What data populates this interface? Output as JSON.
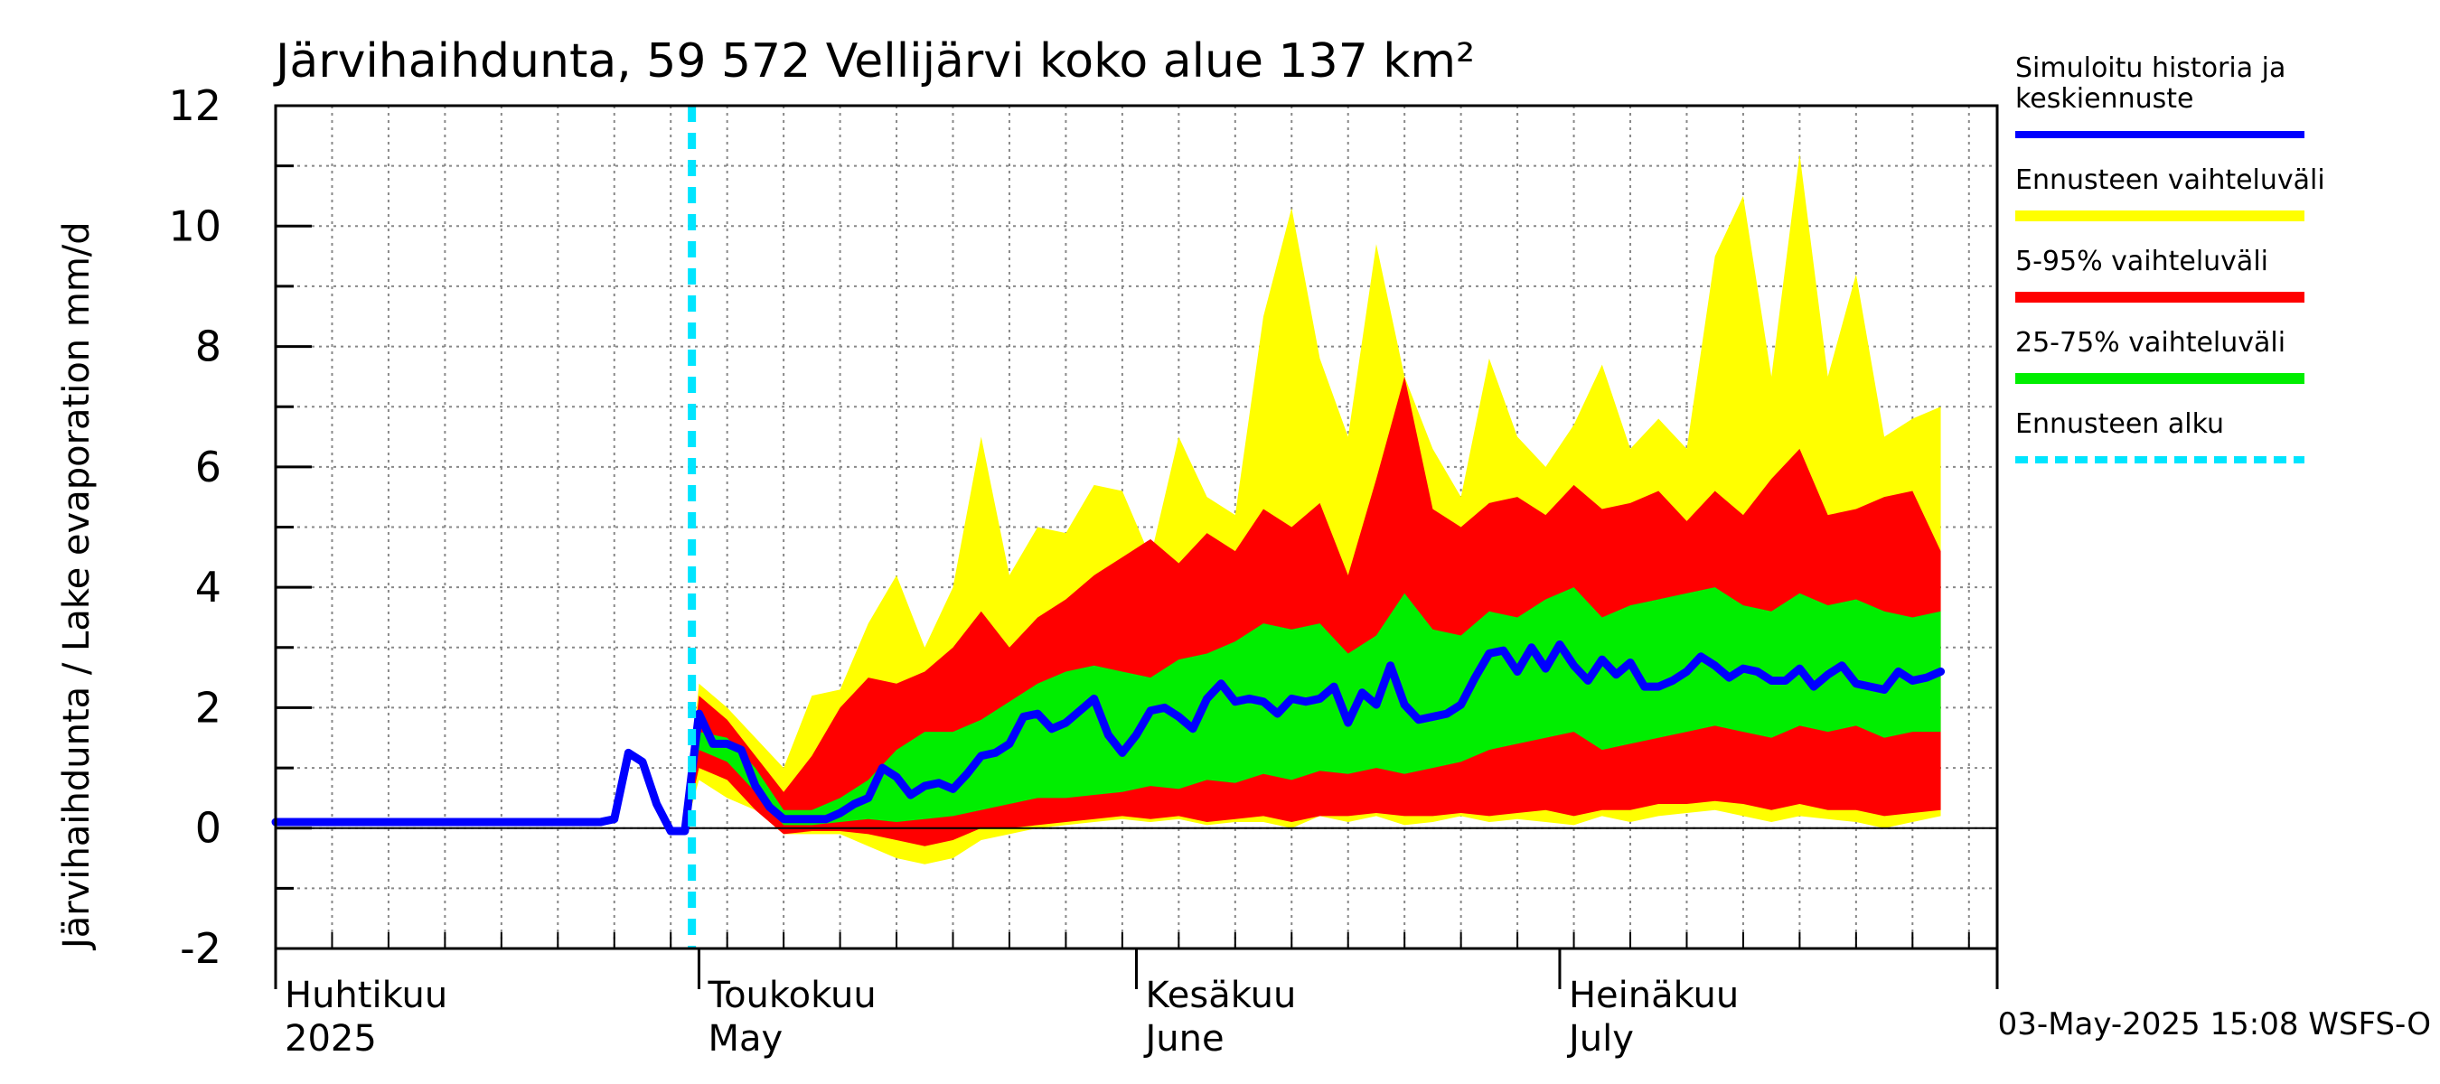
{
  "chart_data": {
    "type": "area",
    "title": "Järvihaihdunta, 59 572 Vellijärvi koko alue 137 km²",
    "ylabel": "Järvihaihdunta / Lake evaporation   mm/d",
    "ylim": [
      -2,
      12
    ],
    "yticks": [
      "-2",
      "0",
      "2",
      "4",
      "6",
      "8",
      "10",
      "12"
    ],
    "grid": true,
    "x_start": "2025-04-01",
    "x_end": "2025-07-31",
    "forecast_start": "2025-04-30",
    "month_labels": [
      {
        "date": "2025-04-01",
        "fi": "Huhtikuu",
        "en": "2025"
      },
      {
        "date": "2025-05-01",
        "fi": "Toukokuu",
        "en": "May"
      },
      {
        "date": "2025-06-01",
        "fi": "Kesäkuu",
        "en": "June"
      },
      {
        "date": "2025-07-01",
        "fi": "Heinäkuu",
        "en": "July"
      }
    ],
    "legend": [
      {
        "label": "Simuloitu historia ja\nkeskiennuste",
        "color": "#0000ff"
      },
      {
        "label": "Ennusteen vaihteluväli",
        "color": "#ffff00"
      },
      {
        "label": "5-95% vaihteluväli",
        "color": "#ff0000"
      },
      {
        "label": "25-75% vaihteluväli",
        "color": "#00ee00"
      },
      {
        "label": "Ennusteen alku",
        "color": "#00e5ff"
      }
    ],
    "timestamp": "03-May-2025 15:08 WSFS-O",
    "colors": {
      "mean": "#0000ff",
      "full_range": "#ffff00",
      "p5_95": "#ff0000",
      "p25_75": "#00ee00",
      "forecast_start": "#00e5ff"
    },
    "series": [
      {
        "name": "Simuloitu historia ja keskiennuste",
        "points": [
          [
            "2025-04-01",
            0.1
          ],
          [
            "2025-04-10",
            0.1
          ],
          [
            "2025-04-20",
            0.1
          ],
          [
            "2025-04-24",
            0.1
          ],
          [
            "2025-04-25",
            0.15
          ],
          [
            "2025-04-26",
            1.25
          ],
          [
            "2025-04-27",
            1.1
          ],
          [
            "2025-04-28",
            0.4
          ],
          [
            "2025-04-29",
            -0.05
          ],
          [
            "2025-04-30",
            -0.05
          ],
          [
            "2025-05-01",
            1.9
          ],
          [
            "2025-05-02",
            1.4
          ],
          [
            "2025-05-03",
            1.4
          ],
          [
            "2025-05-04",
            1.3
          ],
          [
            "2025-05-05",
            0.7
          ],
          [
            "2025-05-06",
            0.35
          ],
          [
            "2025-05-07",
            0.15
          ],
          [
            "2025-05-08",
            0.15
          ],
          [
            "2025-05-09",
            0.15
          ],
          [
            "2025-05-10",
            0.15
          ],
          [
            "2025-05-11",
            0.25
          ],
          [
            "2025-05-12",
            0.4
          ],
          [
            "2025-05-13",
            0.5
          ],
          [
            "2025-05-14",
            1.0
          ],
          [
            "2025-05-15",
            0.85
          ],
          [
            "2025-05-16",
            0.55
          ],
          [
            "2025-05-17",
            0.7
          ],
          [
            "2025-05-18",
            0.75
          ],
          [
            "2025-05-19",
            0.65
          ],
          [
            "2025-05-20",
            0.9
          ],
          [
            "2025-05-21",
            1.2
          ],
          [
            "2025-05-22",
            1.25
          ],
          [
            "2025-05-23",
            1.4
          ],
          [
            "2025-05-24",
            1.85
          ],
          [
            "2025-05-25",
            1.9
          ],
          [
            "2025-05-26",
            1.65
          ],
          [
            "2025-05-27",
            1.75
          ],
          [
            "2025-05-28",
            1.95
          ],
          [
            "2025-05-29",
            2.15
          ],
          [
            "2025-05-30",
            1.55
          ],
          [
            "2025-05-31",
            1.25
          ],
          [
            "2025-06-01",
            1.55
          ],
          [
            "2025-06-02",
            1.95
          ],
          [
            "2025-06-03",
            2.0
          ],
          [
            "2025-06-04",
            1.85
          ],
          [
            "2025-06-05",
            1.65
          ],
          [
            "2025-06-06",
            2.15
          ],
          [
            "2025-06-07",
            2.4
          ],
          [
            "2025-06-08",
            2.1
          ],
          [
            "2025-06-09",
            2.15
          ],
          [
            "2025-06-10",
            2.1
          ],
          [
            "2025-06-11",
            1.9
          ],
          [
            "2025-06-12",
            2.15
          ],
          [
            "2025-06-13",
            2.1
          ],
          [
            "2025-06-14",
            2.15
          ],
          [
            "2025-06-15",
            2.35
          ],
          [
            "2025-06-16",
            1.75
          ],
          [
            "2025-06-17",
            2.25
          ],
          [
            "2025-06-18",
            2.05
          ],
          [
            "2025-06-19",
            2.7
          ],
          [
            "2025-06-20",
            2.05
          ],
          [
            "2025-06-21",
            1.8
          ],
          [
            "2025-06-22",
            1.85
          ],
          [
            "2025-06-23",
            1.9
          ],
          [
            "2025-06-24",
            2.05
          ],
          [
            "2025-06-25",
            2.5
          ],
          [
            "2025-06-26",
            2.9
          ],
          [
            "2025-06-27",
            2.95
          ],
          [
            "2025-06-28",
            2.6
          ],
          [
            "2025-06-29",
            3.0
          ],
          [
            "2025-06-30",
            2.65
          ],
          [
            "2025-07-01",
            3.05
          ],
          [
            "2025-07-02",
            2.7
          ],
          [
            "2025-07-03",
            2.45
          ],
          [
            "2025-07-04",
            2.8
          ],
          [
            "2025-07-05",
            2.55
          ],
          [
            "2025-07-06",
            2.75
          ],
          [
            "2025-07-07",
            2.35
          ],
          [
            "2025-07-08",
            2.35
          ],
          [
            "2025-07-09",
            2.45
          ],
          [
            "2025-07-10",
            2.6
          ],
          [
            "2025-07-11",
            2.85
          ],
          [
            "2025-07-12",
            2.7
          ],
          [
            "2025-07-13",
            2.5
          ],
          [
            "2025-07-14",
            2.65
          ],
          [
            "2025-07-15",
            2.6
          ],
          [
            "2025-07-16",
            2.45
          ],
          [
            "2025-07-17",
            2.45
          ],
          [
            "2025-07-18",
            2.65
          ],
          [
            "2025-07-19",
            2.35
          ],
          [
            "2025-07-20",
            2.55
          ],
          [
            "2025-07-21",
            2.7
          ],
          [
            "2025-07-22",
            2.4
          ],
          [
            "2025-07-23",
            2.35
          ],
          [
            "2025-07-24",
            2.3
          ],
          [
            "2025-07-25",
            2.6
          ],
          [
            "2025-07-26",
            2.45
          ],
          [
            "2025-07-27",
            2.5
          ],
          [
            "2025-07-28",
            2.6
          ]
        ]
      },
      {
        "name": "Ennusteen vaihteluväli",
        "dates": [
          "2025-04-30",
          "2025-05-01",
          "2025-05-03",
          "2025-05-05",
          "2025-05-07",
          "2025-05-09",
          "2025-05-11",
          "2025-05-13",
          "2025-05-15",
          "2025-05-17",
          "2025-05-19",
          "2025-05-21",
          "2025-05-23",
          "2025-05-25",
          "2025-05-27",
          "2025-05-29",
          "2025-05-31",
          "2025-06-02",
          "2025-06-04",
          "2025-06-06",
          "2025-06-08",
          "2025-06-10",
          "2025-06-12",
          "2025-06-14",
          "2025-06-16",
          "2025-06-18",
          "2025-06-20",
          "2025-06-22",
          "2025-06-24",
          "2025-06-26",
          "2025-06-28",
          "2025-06-30",
          "2025-07-02",
          "2025-07-04",
          "2025-07-06",
          "2025-07-08",
          "2025-07-10",
          "2025-07-12",
          "2025-07-14",
          "2025-07-16",
          "2025-07-18",
          "2025-07-20",
          "2025-07-22",
          "2025-07-24",
          "2025-07-26",
          "2025-07-28"
        ],
        "low": [
          -0.05,
          0.8,
          0.5,
          0.3,
          -0.1,
          -0.1,
          -0.1,
          -0.3,
          -0.5,
          -0.6,
          -0.5,
          -0.2,
          -0.1,
          0.0,
          0.05,
          0.1,
          0.15,
          0.1,
          0.15,
          0.05,
          0.1,
          0.1,
          0.0,
          0.2,
          0.1,
          0.2,
          0.05,
          0.1,
          0.2,
          0.1,
          0.15,
          0.1,
          0.05,
          0.2,
          0.1,
          0.2,
          0.25,
          0.3,
          0.2,
          0.1,
          0.2,
          0.15,
          0.1,
          0.0,
          0.1,
          0.2
        ],
        "high": [
          -0.05,
          2.4,
          2.0,
          1.5,
          1.0,
          2.2,
          2.3,
          3.4,
          4.2,
          3.0,
          4.0,
          6.5,
          4.2,
          5.0,
          4.9,
          5.7,
          5.6,
          4.5,
          6.5,
          5.5,
          5.2,
          8.5,
          10.3,
          7.8,
          6.5,
          9.7,
          7.5,
          6.3,
          5.5,
          7.8,
          6.5,
          6.0,
          6.7,
          7.7,
          6.3,
          6.8,
          6.3,
          9.5,
          10.5,
          7.5,
          11.2,
          7.5,
          9.2,
          6.5,
          6.8,
          7.0
        ]
      },
      {
        "name": "5-95% vaihteluväli",
        "dates": [
          "2025-04-30",
          "2025-05-01",
          "2025-05-03",
          "2025-05-05",
          "2025-05-07",
          "2025-05-09",
          "2025-05-11",
          "2025-05-13",
          "2025-05-15",
          "2025-05-17",
          "2025-05-19",
          "2025-05-21",
          "2025-05-23",
          "2025-05-25",
          "2025-05-27",
          "2025-05-29",
          "2025-05-31",
          "2025-06-02",
          "2025-06-04",
          "2025-06-06",
          "2025-06-08",
          "2025-06-10",
          "2025-06-12",
          "2025-06-14",
          "2025-06-16",
          "2025-06-18",
          "2025-06-20",
          "2025-06-22",
          "2025-06-24",
          "2025-06-26",
          "2025-06-28",
          "2025-06-30",
          "2025-07-02",
          "2025-07-04",
          "2025-07-06",
          "2025-07-08",
          "2025-07-10",
          "2025-07-12",
          "2025-07-14",
          "2025-07-16",
          "2025-07-18",
          "2025-07-20",
          "2025-07-22",
          "2025-07-24",
          "2025-07-26",
          "2025-07-28"
        ],
        "low": [
          -0.05,
          1.0,
          0.8,
          0.3,
          -0.1,
          -0.05,
          -0.05,
          -0.1,
          -0.2,
          -0.3,
          -0.2,
          0.0,
          0.0,
          0.05,
          0.1,
          0.15,
          0.2,
          0.15,
          0.2,
          0.1,
          0.15,
          0.2,
          0.1,
          0.2,
          0.2,
          0.25,
          0.2,
          0.2,
          0.25,
          0.2,
          0.25,
          0.3,
          0.2,
          0.3,
          0.3,
          0.4,
          0.4,
          0.45,
          0.4,
          0.3,
          0.4,
          0.3,
          0.3,
          0.2,
          0.25,
          0.3
        ],
        "high": [
          -0.05,
          2.2,
          1.8,
          1.2,
          0.6,
          1.2,
          2.0,
          2.5,
          2.4,
          2.6,
          3.0,
          3.6,
          3.0,
          3.5,
          3.8,
          4.2,
          4.5,
          4.8,
          4.4,
          4.9,
          4.6,
          5.3,
          5.0,
          5.4,
          4.2,
          5.8,
          7.5,
          5.3,
          5.0,
          5.4,
          5.5,
          5.2,
          5.7,
          5.3,
          5.4,
          5.6,
          5.1,
          5.6,
          5.2,
          5.8,
          6.3,
          5.2,
          5.3,
          5.5,
          5.6,
          4.6
        ]
      },
      {
        "name": "25-75% vaihteluväli",
        "dates": [
          "2025-04-30",
          "2025-05-01",
          "2025-05-03",
          "2025-05-05",
          "2025-05-07",
          "2025-05-09",
          "2025-05-11",
          "2025-05-13",
          "2025-05-15",
          "2025-05-17",
          "2025-05-19",
          "2025-05-21",
          "2025-05-23",
          "2025-05-25",
          "2025-05-27",
          "2025-05-29",
          "2025-05-31",
          "2025-06-02",
          "2025-06-04",
          "2025-06-06",
          "2025-06-08",
          "2025-06-10",
          "2025-06-12",
          "2025-06-14",
          "2025-06-16",
          "2025-06-18",
          "2025-06-20",
          "2025-06-22",
          "2025-06-24",
          "2025-06-26",
          "2025-06-28",
          "2025-06-30",
          "2025-07-02",
          "2025-07-04",
          "2025-07-06",
          "2025-07-08",
          "2025-07-10",
          "2025-07-12",
          "2025-07-14",
          "2025-07-16",
          "2025-07-18",
          "2025-07-20",
          "2025-07-22",
          "2025-07-24",
          "2025-07-26",
          "2025-07-28"
        ],
        "low": [
          -0.05,
          1.3,
          1.1,
          0.6,
          0.05,
          0.05,
          0.1,
          0.15,
          0.1,
          0.15,
          0.2,
          0.3,
          0.4,
          0.5,
          0.5,
          0.55,
          0.6,
          0.7,
          0.65,
          0.8,
          0.75,
          0.9,
          0.8,
          0.95,
          0.9,
          1.0,
          0.9,
          1.0,
          1.1,
          1.3,
          1.4,
          1.5,
          1.6,
          1.3,
          1.4,
          1.5,
          1.6,
          1.7,
          1.6,
          1.5,
          1.7,
          1.6,
          1.7,
          1.5,
          1.6,
          1.6
        ]
      },
      {
        "name": "25-75% vaihteluväli upper",
        "values": [
          -0.05,
          1.6,
          1.5,
          1.0,
          0.3,
          0.3,
          0.5,
          0.8,
          1.3,
          1.6,
          1.6,
          1.8,
          2.1,
          2.4,
          2.6,
          2.7,
          2.6,
          2.5,
          2.8,
          2.9,
          3.1,
          3.4,
          3.3,
          3.4,
          2.9,
          3.2,
          3.9,
          3.3,
          3.2,
          3.6,
          3.5,
          3.8,
          4.0,
          3.5,
          3.7,
          3.8,
          3.9,
          4.0,
          3.7,
          3.6,
          3.9,
          3.7,
          3.8,
          3.6,
          3.5,
          3.6
        ]
      }
    ]
  }
}
